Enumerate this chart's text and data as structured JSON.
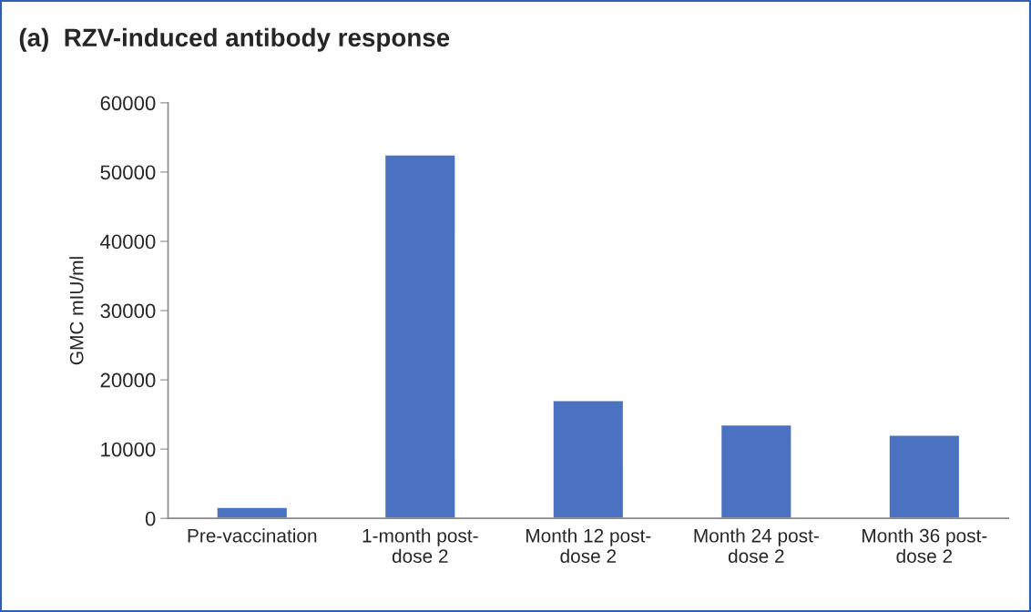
{
  "chart_data": {
    "type": "bar",
    "title": "(a)  RZV-induced antibody response",
    "ylabel": "GMC mIU/ml",
    "categories": [
      "Pre-vaccination",
      "1-month post-\ndose 2",
      "Month 12 post-\ndose 2",
      "Month 24 post-\ndose 2",
      "Month 36 post-\ndose 2"
    ],
    "values": [
      1600,
      52500,
      17000,
      13500,
      12000
    ],
    "color": "#4a72c0",
    "ylim": [
      0,
      60000
    ],
    "yticks": [
      0,
      10000,
      20000,
      30000,
      40000,
      50000,
      60000
    ],
    "grid": false
  }
}
